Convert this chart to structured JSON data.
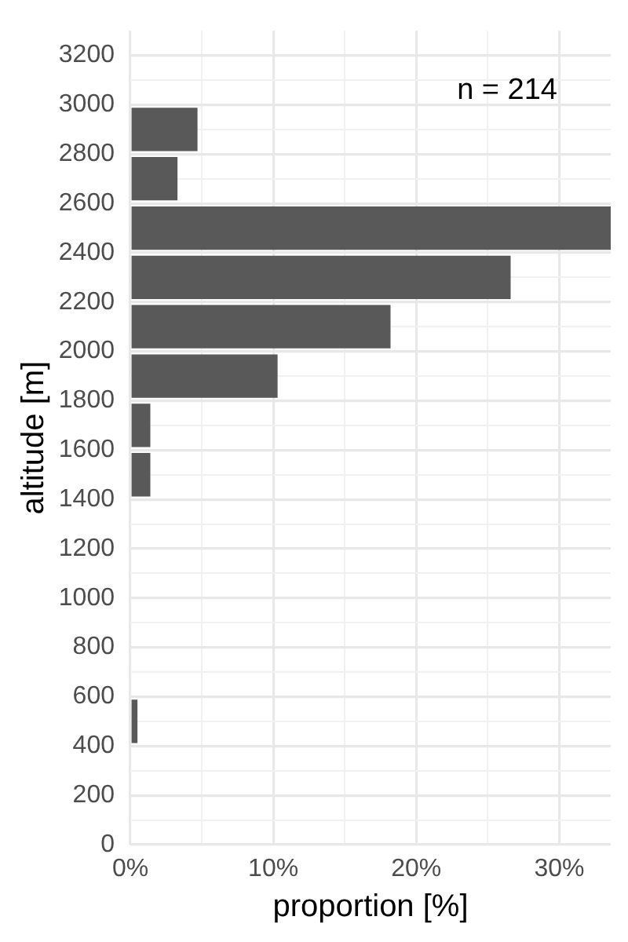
{
  "chart_data": {
    "type": "histogram",
    "orientation": "horizontal",
    "bins": [
      400,
      600,
      800,
      1000,
      1200,
      1400,
      1600,
      1800,
      2000,
      2200,
      2400,
      2600,
      2800,
      3000
    ],
    "values": [
      0.5,
      0,
      0,
      0,
      0,
      1.4,
      1.4,
      10.3,
      18.2,
      26.6,
      33.6,
      3.3,
      4.7
    ],
    "color": "#595959",
    "xlabel": "proportion [%]",
    "ylabel": "altitude [m]",
    "xlim": [
      0,
      33.6
    ],
    "xticks": [
      {
        "value": 0,
        "label": "0%"
      },
      {
        "value": 5,
        "label": null
      },
      {
        "value": 10,
        "label": "10%"
      },
      {
        "value": 15,
        "label": null
      },
      {
        "value": 20,
        "label": "20%"
      },
      {
        "value": 25,
        "label": null
      },
      {
        "value": 30,
        "label": "30%"
      }
    ],
    "ylim": [
      0,
      3300
    ],
    "yticks": [
      0,
      {
        "value": 100,
        "label": null
      },
      200,
      {
        "value": 300,
        "label": null
      },
      400,
      {
        "value": 500,
        "label": null
      },
      600,
      {
        "value": 700,
        "label": null
      },
      800,
      {
        "value": 900,
        "label": null
      },
      1000,
      {
        "value": 1100,
        "label": null
      },
      1200,
      {
        "value": 1300,
        "label": null
      },
      1400,
      {
        "value": 1500,
        "label": null
      },
      1600,
      {
        "value": 1700,
        "label": null
      },
      1800,
      {
        "value": 1900,
        "label": null
      },
      2000,
      {
        "value": 2100,
        "label": null
      },
      2200,
      {
        "value": 2300,
        "label": null
      },
      2400,
      {
        "value": 2500,
        "label": null
      },
      2600,
      {
        "value": 2700,
        "label": null
      },
      2800,
      {
        "value": 2900,
        "label": null
      },
      3000,
      {
        "value": 3100,
        "label": null
      },
      3200
    ],
    "grid": true,
    "annotations": [
      "n = 214"
    ]
  }
}
